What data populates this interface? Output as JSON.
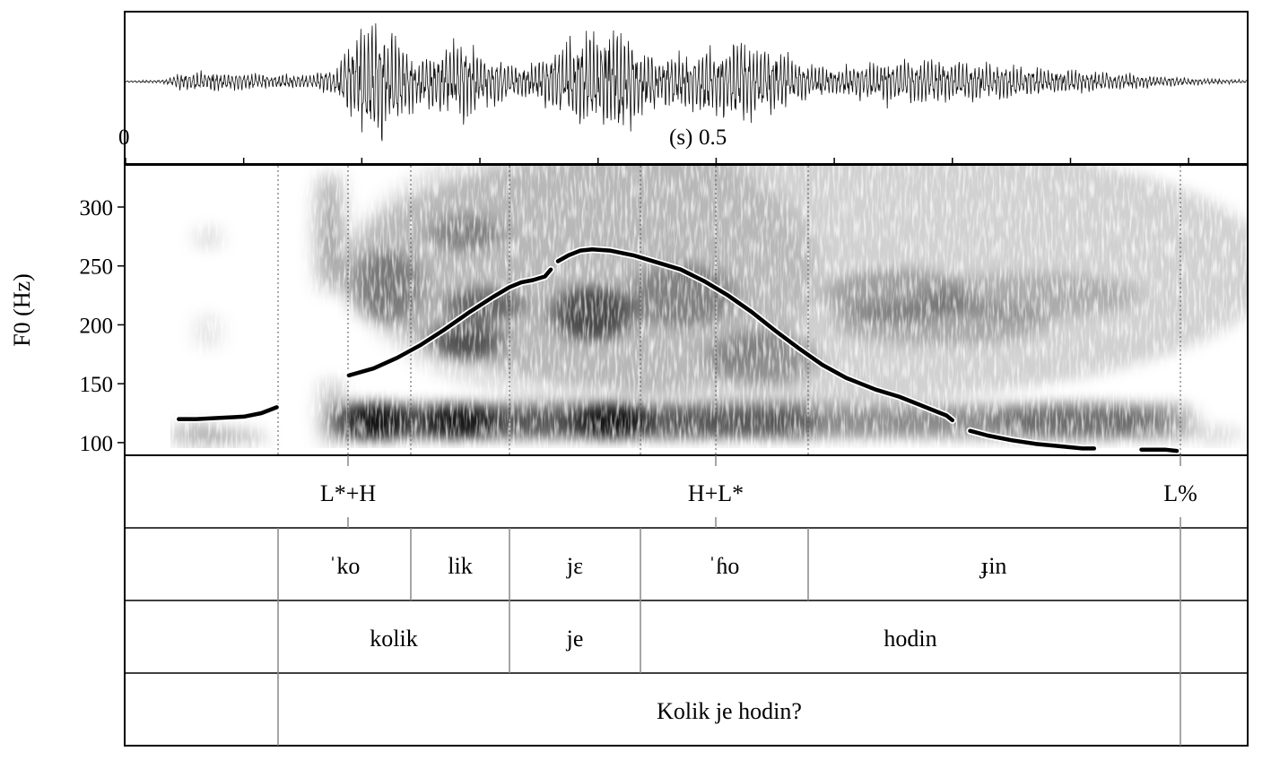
{
  "waveform": {
    "time_start_label": "0",
    "time_unit_label": "(s)",
    "time_mid_label": "0.5"
  },
  "chart_data": {
    "type": "line",
    "ylabel": "F0 (Hz)",
    "ylim": [
      90,
      335
    ],
    "yticks": [
      "100",
      "150",
      "200",
      "250",
      "300"
    ],
    "xlim": [
      0,
      0.95
    ],
    "series": [
      {
        "x": [
          0.045,
          0.06,
          0.08,
          0.1,
          0.115,
          0.128
        ],
        "values": [
          120,
          120,
          121,
          122,
          125,
          130
        ]
      },
      {
        "x": [
          0.189,
          0.21,
          0.23,
          0.25,
          0.27,
          0.29,
          0.31,
          0.325,
          0.335,
          0.345,
          0.355,
          0.36
        ],
        "values": [
          157,
          163,
          172,
          183,
          196,
          210,
          223,
          232,
          236,
          238,
          241,
          247
        ]
      },
      {
        "x": [
          0.366,
          0.375,
          0.385,
          0.395,
          0.41,
          0.43,
          0.45,
          0.47,
          0.49,
          0.51,
          0.53,
          0.55,
          0.57,
          0.59,
          0.61,
          0.62,
          0.635,
          0.655,
          0.675,
          0.695,
          0.7
        ],
        "values": [
          254,
          259,
          263,
          264,
          263,
          259,
          253,
          247,
          237,
          225,
          211,
          195,
          180,
          166,
          155,
          151,
          145,
          139,
          131,
          123,
          119
        ]
      },
      {
        "x": [
          0.715,
          0.73,
          0.75,
          0.77,
          0.79,
          0.81,
          0.82
        ],
        "values": [
          110,
          106,
          102,
          99,
          97,
          95,
          95
        ]
      },
      {
        "x": [
          0.86,
          0.88,
          0.89
        ],
        "values": [
          94,
          94,
          93
        ]
      }
    ]
  },
  "textgrid": {
    "tones": [
      {
        "label": "L*+H",
        "t": 0.189
      },
      {
        "label": "H+L*",
        "t": 0.501
      },
      {
        "label": "L%",
        "t": 0.894
      }
    ],
    "syllables": [
      "ˈko",
      "lik",
      "jɛ",
      "ˈɦo",
      "ɟin"
    ],
    "words": [
      "kolik",
      "je",
      "hodin"
    ],
    "phrase": "Kolik je hodin?"
  },
  "colors": {
    "frame": "#000000",
    "boundary": "#888888",
    "spectrogram_dark": "#000000"
  }
}
